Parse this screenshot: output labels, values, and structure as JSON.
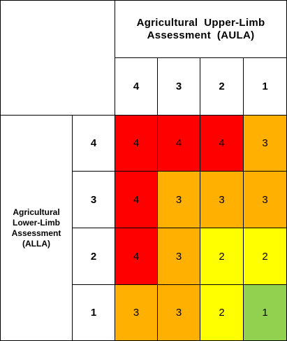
{
  "table": {
    "column_group_title": [
      "Agricultural  Upper-Limb",
      "Assessment  (AULA)"
    ],
    "row_group_title": [
      "Agricultural",
      "Lower-Limb",
      "Assessment",
      "(ALLA)"
    ],
    "columns": [
      "4",
      "3",
      "2",
      "1"
    ],
    "rows": [
      {
        "label": "4",
        "cells": [
          "4",
          "4",
          "4",
          "3"
        ]
      },
      {
        "label": "3",
        "cells": [
          "4",
          "3",
          "3",
          "3"
        ]
      },
      {
        "label": "2",
        "cells": [
          "4",
          "3",
          "2",
          "2"
        ]
      },
      {
        "label": "1",
        "cells": [
          "3",
          "3",
          "2",
          "1"
        ]
      }
    ]
  },
  "colors": {
    "4": "#ff0000",
    "3": "#ffb000",
    "2": "#ffff00",
    "1": "#92d050"
  }
}
